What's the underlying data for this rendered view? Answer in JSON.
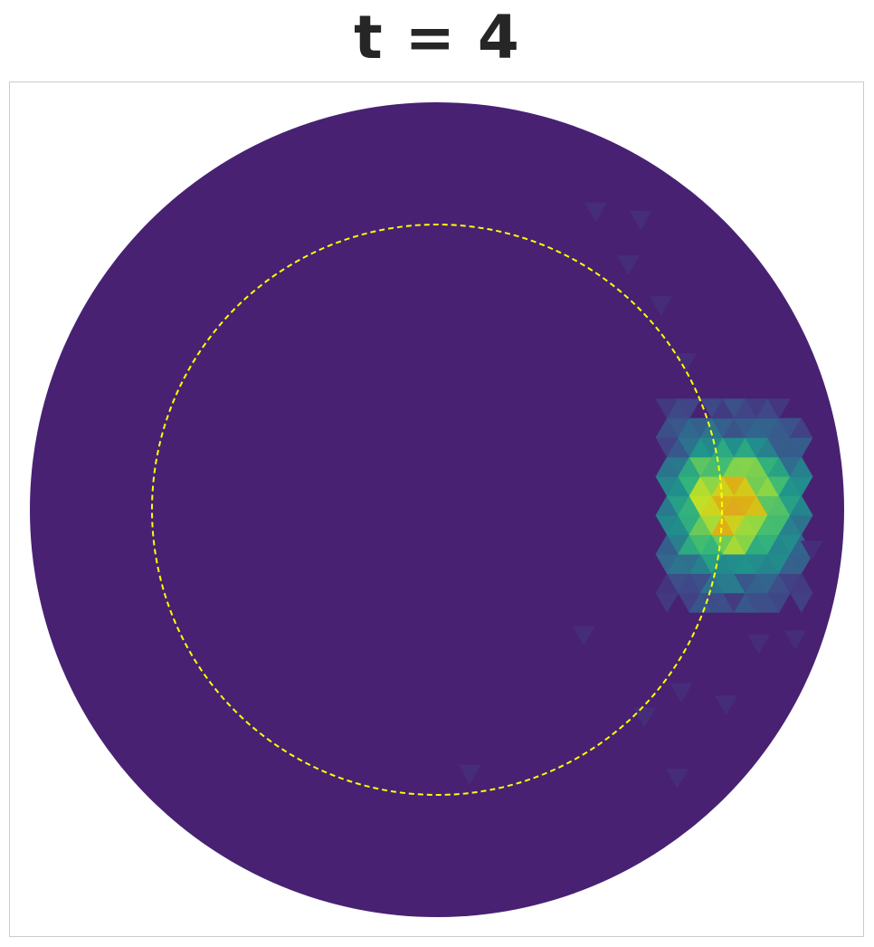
{
  "chart_data": {
    "type": "heatmap",
    "title": "t = 4",
    "xlabel": "",
    "ylabel": "",
    "grid": false,
    "legend": "none",
    "colormap": "viridis",
    "domain": {
      "shape": "disk",
      "radius": 1.0
    },
    "reference_circle": {
      "radius": 0.7,
      "style": "dashed",
      "color": "#ffff00"
    },
    "hotspot": {
      "center": [
        0.73,
        0.01
      ],
      "spread": 0.13,
      "peak": 0.9
    },
    "colors": {
      "background_field": "#482173",
      "frame": "#cccccc",
      "title": "#262626"
    }
  }
}
